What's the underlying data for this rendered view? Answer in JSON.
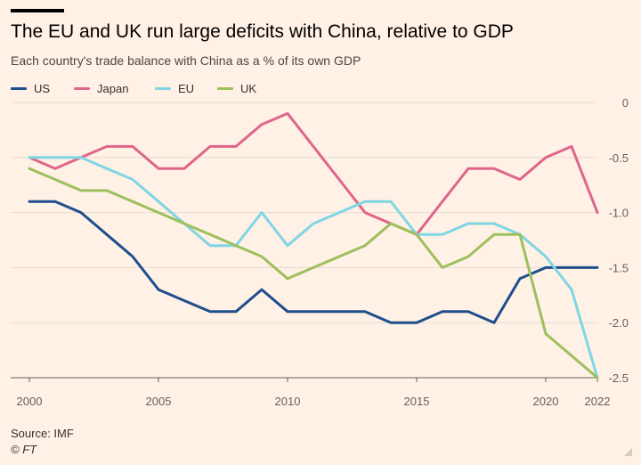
{
  "header": {
    "title": "The EU and UK run large deficits with China, relative to GDP",
    "subtitle": "Each country's trade balance with China as a % of its own GDP"
  },
  "footer": {
    "source": "Source: IMF",
    "credit": "© FT"
  },
  "chart_data": {
    "type": "line",
    "title": "The EU and UK run large deficits with China, relative to GDP",
    "subtitle": "Each country's trade balance with China as a % of its own GDP",
    "xlabel": "",
    "ylabel": "",
    "x": [
      2000,
      2001,
      2002,
      2003,
      2004,
      2005,
      2006,
      2007,
      2008,
      2009,
      2010,
      2011,
      2012,
      2013,
      2014,
      2015,
      2016,
      2017,
      2018,
      2019,
      2020,
      2021,
      2022
    ],
    "xlim": [
      2000,
      2022
    ],
    "ylim": [
      -2.5,
      0
    ],
    "x_ticks": [
      "2000",
      "2005",
      "2010",
      "2015",
      "2020",
      "2022"
    ],
    "y_ticks": [
      "0",
      "-0.5",
      "-1.0",
      "-1.5",
      "-2.0",
      "-2.5"
    ],
    "grid": true,
    "legend_position": "top-left",
    "series": [
      {
        "name": "US",
        "color": "#1F4E8C",
        "values": [
          -0.9,
          -0.9,
          -1.0,
          -1.2,
          -1.4,
          -1.7,
          -1.8,
          -1.9,
          -1.9,
          -1.7,
          -1.9,
          -1.9,
          -1.9,
          -1.9,
          -2.0,
          -2.0,
          -1.9,
          -1.9,
          -2.0,
          -1.6,
          -1.5,
          -1.5,
          -1.5
        ]
      },
      {
        "name": "Japan",
        "color": "#E0658C",
        "values": [
          -0.5,
          -0.6,
          -0.5,
          -0.4,
          -0.4,
          -0.6,
          -0.6,
          -0.4,
          -0.4,
          -0.2,
          -0.1,
          -0.4,
          -0.7,
          -1.0,
          -1.1,
          -1.2,
          -0.9,
          -0.6,
          -0.6,
          -0.7,
          -0.5,
          -0.4,
          -1.0
        ]
      },
      {
        "name": "EU",
        "color": "#7FD6E4",
        "values": [
          -0.5,
          -0.5,
          -0.5,
          -0.6,
          -0.7,
          -0.9,
          -1.1,
          -1.3,
          -1.3,
          -1.0,
          -1.3,
          -1.1,
          -1.0,
          -0.9,
          -0.9,
          -1.2,
          -1.2,
          -1.1,
          -1.1,
          -1.2,
          -1.4,
          -1.7,
          -2.5
        ]
      },
      {
        "name": "UK",
        "color": "#9DBF5E",
        "values": [
          -0.6,
          -0.7,
          -0.8,
          -0.8,
          -0.9,
          -1.0,
          -1.1,
          -1.2,
          -1.3,
          -1.4,
          -1.6,
          -1.5,
          -1.4,
          -1.3,
          -1.1,
          -1.2,
          -1.5,
          -1.4,
          -1.2,
          -1.2,
          -2.1,
          -2.3,
          -2.5
        ]
      }
    ]
  }
}
